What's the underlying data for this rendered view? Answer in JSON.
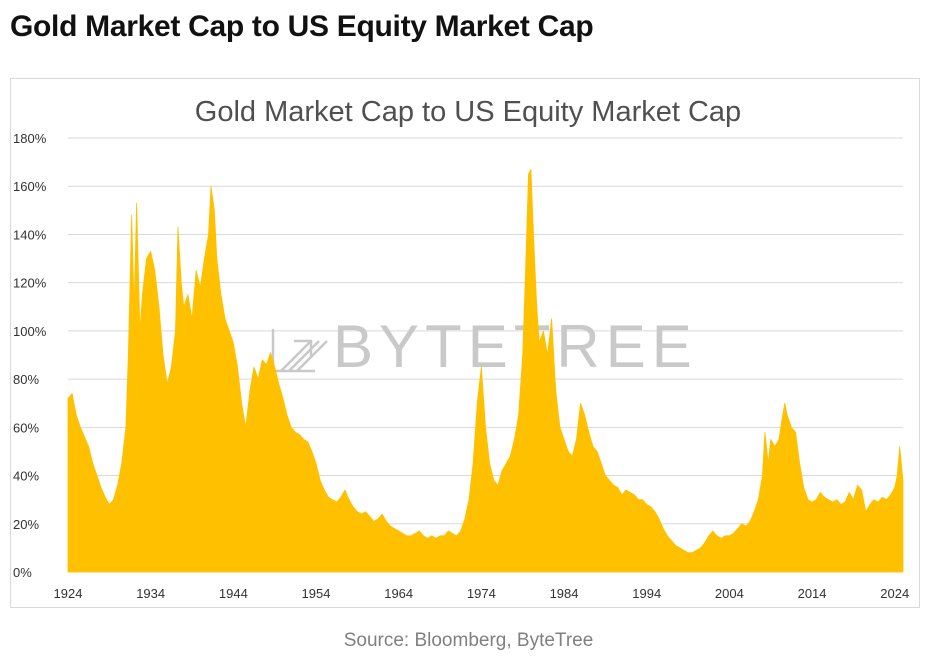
{
  "page": {
    "heading": "Gold Market Cap to US Equity Market Cap",
    "source": "Source: Bloomberg, ByteTree",
    "watermark": "BYTETREE"
  },
  "colors": {
    "area_fill": "#FFC000",
    "gridline": "#D9D9D9",
    "axis_text": "#333333",
    "title_text": "#505050",
    "watermark": "#C9C9C9"
  },
  "chart_data": {
    "type": "area",
    "title": "Gold Market Cap to US Equity Market Cap",
    "xlabel": "",
    "ylabel": "",
    "xlim": [
      1924,
      2025
    ],
    "ylim": [
      0,
      180
    ],
    "y_ticks": [
      0,
      20,
      40,
      60,
      80,
      100,
      120,
      140,
      160,
      180
    ],
    "y_tick_labels": [
      "0%",
      "20%",
      "40%",
      "60%",
      "80%",
      "100%",
      "120%",
      "140%",
      "160%",
      "180%"
    ],
    "x_ticks": [
      1924,
      1934,
      1944,
      1954,
      1964,
      1974,
      1984,
      1994,
      2004,
      2014,
      2024
    ],
    "x_tick_labels": [
      "1924",
      "1934",
      "1944",
      "1954",
      "1964",
      "1974",
      "1984",
      "1994",
      "2004",
      "2014",
      "2024"
    ],
    "grid": true,
    "legend": "none",
    "series": [
      {
        "values": [
          [
            1924,
            72
          ],
          [
            1924.5,
            74
          ],
          [
            1925,
            65
          ],
          [
            1925.5,
            60
          ],
          [
            1926,
            56
          ],
          [
            1926.5,
            52
          ],
          [
            1927,
            45
          ],
          [
            1927.5,
            40
          ],
          [
            1928,
            35
          ],
          [
            1928.5,
            31
          ],
          [
            1929,
            28
          ],
          [
            1929.5,
            30
          ],
          [
            1930,
            36
          ],
          [
            1930.5,
            45
          ],
          [
            1931,
            60
          ],
          [
            1931.3,
            90
          ],
          [
            1931.7,
            148
          ],
          [
            1932,
            110
          ],
          [
            1932.3,
            153
          ],
          [
            1932.7,
            100
          ],
          [
            1933,
            115
          ],
          [
            1933.5,
            130
          ],
          [
            1934,
            133
          ],
          [
            1934.5,
            125
          ],
          [
            1935,
            110
          ],
          [
            1935.5,
            90
          ],
          [
            1936,
            78
          ],
          [
            1936.5,
            85
          ],
          [
            1937,
            100
          ],
          [
            1937.3,
            143
          ],
          [
            1937.7,
            120
          ],
          [
            1938,
            110
          ],
          [
            1938.5,
            115
          ],
          [
            1939,
            105
          ],
          [
            1939.5,
            125
          ],
          [
            1940,
            118
          ],
          [
            1940.5,
            130
          ],
          [
            1941,
            140
          ],
          [
            1941.3,
            160
          ],
          [
            1941.7,
            150
          ],
          [
            1942,
            130
          ],
          [
            1942.5,
            115
          ],
          [
            1943,
            105
          ],
          [
            1943.5,
            100
          ],
          [
            1944,
            95
          ],
          [
            1944.5,
            85
          ],
          [
            1945,
            70
          ],
          [
            1945.5,
            60
          ],
          [
            1946,
            75
          ],
          [
            1946.5,
            85
          ],
          [
            1947,
            80
          ],
          [
            1947.5,
            88
          ],
          [
            1948,
            86
          ],
          [
            1948.5,
            91
          ],
          [
            1949,
            85
          ],
          [
            1949.5,
            78
          ],
          [
            1950,
            72
          ],
          [
            1950.5,
            65
          ],
          [
            1951,
            60
          ],
          [
            1951.5,
            58
          ],
          [
            1952,
            57
          ],
          [
            1952.5,
            55
          ],
          [
            1953,
            54
          ],
          [
            1953.5,
            50
          ],
          [
            1954,
            45
          ],
          [
            1954.5,
            38
          ],
          [
            1955,
            34
          ],
          [
            1955.5,
            31
          ],
          [
            1956,
            30
          ],
          [
            1956.5,
            29
          ],
          [
            1957,
            31
          ],
          [
            1957.5,
            34
          ],
          [
            1958,
            30
          ],
          [
            1958.5,
            27
          ],
          [
            1959,
            25
          ],
          [
            1959.5,
            24
          ],
          [
            1960,
            25
          ],
          [
            1960.5,
            23
          ],
          [
            1961,
            21
          ],
          [
            1961.5,
            22
          ],
          [
            1962,
            24
          ],
          [
            1962.5,
            21
          ],
          [
            1963,
            19
          ],
          [
            1963.5,
            18
          ],
          [
            1964,
            17
          ],
          [
            1964.5,
            16
          ],
          [
            1965,
            15
          ],
          [
            1965.5,
            15
          ],
          [
            1966,
            16
          ],
          [
            1966.5,
            17
          ],
          [
            1967,
            15
          ],
          [
            1967.5,
            14
          ],
          [
            1968,
            15
          ],
          [
            1968.5,
            14
          ],
          [
            1969,
            15
          ],
          [
            1969.5,
            15
          ],
          [
            1970,
            17
          ],
          [
            1970.5,
            16
          ],
          [
            1971,
            15
          ],
          [
            1971.5,
            17
          ],
          [
            1972,
            22
          ],
          [
            1972.5,
            30
          ],
          [
            1973,
            45
          ],
          [
            1973.5,
            70
          ],
          [
            1974,
            85
          ],
          [
            1974.5,
            60
          ],
          [
            1975,
            45
          ],
          [
            1975.5,
            38
          ],
          [
            1976,
            36
          ],
          [
            1976.5,
            42
          ],
          [
            1977,
            45
          ],
          [
            1977.5,
            48
          ],
          [
            1978,
            55
          ],
          [
            1978.5,
            65
          ],
          [
            1979,
            90
          ],
          [
            1979.3,
            120
          ],
          [
            1979.7,
            165
          ],
          [
            1980,
            167
          ],
          [
            1980.3,
            140
          ],
          [
            1980.7,
            110
          ],
          [
            1981,
            95
          ],
          [
            1981.5,
            100
          ],
          [
            1982,
            90
          ],
          [
            1982.5,
            105
          ],
          [
            1983,
            75
          ],
          [
            1983.5,
            60
          ],
          [
            1984,
            55
          ],
          [
            1984.5,
            50
          ],
          [
            1985,
            48
          ],
          [
            1985.5,
            55
          ],
          [
            1986,
            70
          ],
          [
            1986.5,
            65
          ],
          [
            1987,
            58
          ],
          [
            1987.5,
            52
          ],
          [
            1988,
            50
          ],
          [
            1988.5,
            45
          ],
          [
            1989,
            40
          ],
          [
            1989.5,
            38
          ],
          [
            1990,
            36
          ],
          [
            1990.5,
            35
          ],
          [
            1991,
            32
          ],
          [
            1991.5,
            34
          ],
          [
            1992,
            33
          ],
          [
            1992.5,
            32
          ],
          [
            1993,
            30
          ],
          [
            1993.5,
            30
          ],
          [
            1994,
            28
          ],
          [
            1994.5,
            27
          ],
          [
            1995,
            25
          ],
          [
            1995.5,
            22
          ],
          [
            1996,
            18
          ],
          [
            1996.5,
            15
          ],
          [
            1997,
            13
          ],
          [
            1997.5,
            11
          ],
          [
            1998,
            10
          ],
          [
            1998.5,
            9
          ],
          [
            1999,
            8
          ],
          [
            1999.5,
            8
          ],
          [
            2000,
            9
          ],
          [
            2000.5,
            10
          ],
          [
            2001,
            12
          ],
          [
            2001.5,
            15
          ],
          [
            2002,
            17
          ],
          [
            2002.5,
            15
          ],
          [
            2003,
            14
          ],
          [
            2003.5,
            15
          ],
          [
            2004,
            15
          ],
          [
            2004.5,
            16
          ],
          [
            2005,
            18
          ],
          [
            2005.5,
            20
          ],
          [
            2006,
            19
          ],
          [
            2006.5,
            21
          ],
          [
            2007,
            25
          ],
          [
            2007.5,
            30
          ],
          [
            2008,
            40
          ],
          [
            2008.3,
            58
          ],
          [
            2008.7,
            45
          ],
          [
            2009,
            55
          ],
          [
            2009.5,
            52
          ],
          [
            2010,
            55
          ],
          [
            2010.3,
            62
          ],
          [
            2010.7,
            70
          ],
          [
            2011,
            65
          ],
          [
            2011.5,
            60
          ],
          [
            2012,
            58
          ],
          [
            2012.5,
            45
          ],
          [
            2013,
            35
          ],
          [
            2013.5,
            30
          ],
          [
            2014,
            29
          ],
          [
            2014.5,
            30
          ],
          [
            2015,
            33
          ],
          [
            2015.5,
            31
          ],
          [
            2016,
            30
          ],
          [
            2016.5,
            29
          ],
          [
            2017,
            30
          ],
          [
            2017.5,
            28
          ],
          [
            2018,
            29
          ],
          [
            2018.5,
            33
          ],
          [
            2019,
            30
          ],
          [
            2019.5,
            36
          ],
          [
            2020,
            34
          ],
          [
            2020.5,
            25
          ],
          [
            2021,
            28
          ],
          [
            2021.5,
            30
          ],
          [
            2022,
            29
          ],
          [
            2022.5,
            31
          ],
          [
            2023,
            30
          ],
          [
            2023.5,
            32
          ],
          [
            2024,
            35
          ],
          [
            2024.3,
            40
          ],
          [
            2024.6,
            52
          ],
          [
            2024.8,
            45
          ],
          [
            2025,
            38
          ]
        ]
      }
    ]
  }
}
